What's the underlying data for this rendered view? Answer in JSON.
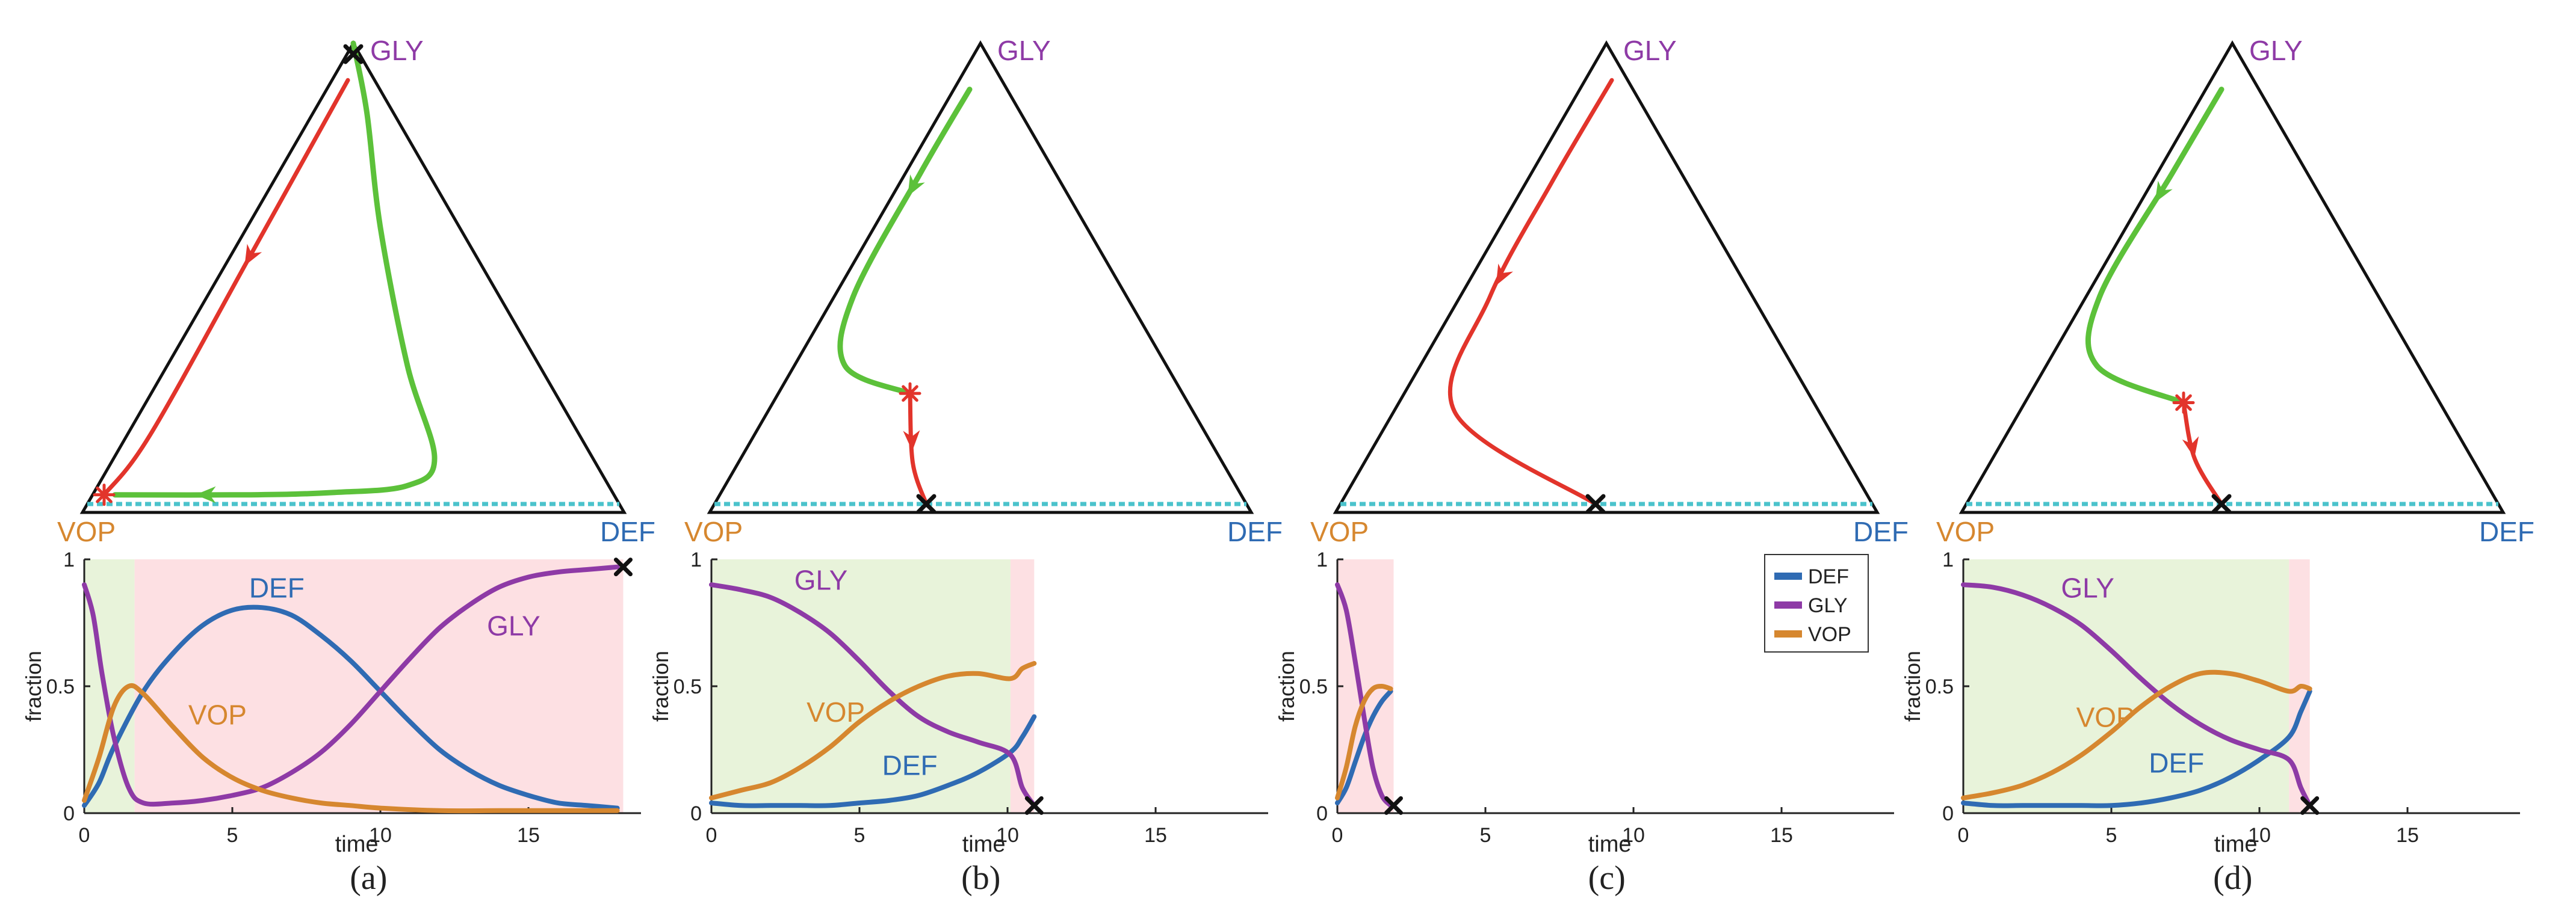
{
  "colors": {
    "DEF": "#2f6bb3",
    "GLY": "#8e3aa6",
    "VOP": "#d6872f",
    "path_green": "#5cc13a",
    "path_red": "#e2342b",
    "baseline": "#4cc3cc",
    "shade_green": "#e8f3da",
    "shade_red": "#fde0e3",
    "marker_star": "#e2342b",
    "end_x": "#111111"
  },
  "vertex_labels": {
    "top": "GLY",
    "left": "VOP",
    "right": "DEF"
  },
  "chart_data": [
    {
      "panel": "(a)",
      "type": "line",
      "xlabel": "time",
      "ylabel": "fraction",
      "xlim": [
        0,
        18.5
      ],
      "ylim": [
        0,
        1
      ],
      "xticks": [
        "0",
        "5",
        "10",
        "15"
      ],
      "yticks": [
        "0",
        "0.5",
        "1"
      ],
      "shading": [
        {
          "from": 0,
          "to": 1.7,
          "color": "green"
        },
        {
          "from": 1.7,
          "to": 18.2,
          "color": "red"
        }
      ],
      "series": [
        {
          "name": "DEF",
          "x": [
            0,
            0.5,
            1,
            2,
            3,
            4,
            5,
            6,
            7,
            8,
            9,
            10,
            11,
            12,
            13,
            14,
            15,
            16,
            17,
            18
          ],
          "values": [
            0.03,
            0.12,
            0.26,
            0.48,
            0.63,
            0.74,
            0.8,
            0.81,
            0.78,
            0.7,
            0.6,
            0.48,
            0.36,
            0.25,
            0.17,
            0.11,
            0.07,
            0.04,
            0.03,
            0.02
          ]
        },
        {
          "name": "GLY",
          "x": [
            0,
            0.3,
            0.6,
            1,
            1.5,
            2,
            3,
            4,
            5,
            6,
            7,
            8,
            9,
            10,
            11,
            12,
            13,
            14,
            15,
            16,
            17,
            18
          ],
          "values": [
            0.9,
            0.78,
            0.55,
            0.3,
            0.1,
            0.04,
            0.04,
            0.05,
            0.07,
            0.1,
            0.16,
            0.24,
            0.35,
            0.48,
            0.61,
            0.73,
            0.82,
            0.89,
            0.93,
            0.95,
            0.96,
            0.97
          ]
        },
        {
          "name": "VOP",
          "x": [
            0,
            0.5,
            1,
            1.5,
            2,
            3,
            4,
            5,
            6,
            7,
            8,
            9,
            10,
            12,
            14,
            16,
            18
          ],
          "values": [
            0.05,
            0.22,
            0.42,
            0.5,
            0.47,
            0.34,
            0.22,
            0.14,
            0.09,
            0.06,
            0.04,
            0.03,
            0.02,
            0.01,
            0.01,
            0.01,
            0.01
          ]
        }
      ],
      "curve_labels": [
        {
          "text": "DEF",
          "x": 6.5,
          "y": 0.85
        },
        {
          "text": "GLY",
          "x": 14.5,
          "y": 0.7
        },
        {
          "text": "VOP",
          "x": 4.5,
          "y": 0.35
        }
      ],
      "end_marker": {
        "x": 18.2,
        "y": 0.97
      }
    },
    {
      "panel": "(b)",
      "type": "line",
      "xlabel": "time",
      "ylabel": "fraction",
      "xlim": [
        0,
        19
      ],
      "ylim": [
        0,
        1
      ],
      "xticks": [
        "0",
        "5",
        "10",
        "15"
      ],
      "yticks": [
        "0",
        "0.5",
        "1"
      ],
      "shading": [
        {
          "from": 0,
          "to": 10.1,
          "color": "green"
        },
        {
          "from": 10.1,
          "to": 10.9,
          "color": "red"
        }
      ],
      "series": [
        {
          "name": "DEF",
          "x": [
            0,
            1,
            2,
            3,
            4,
            5,
            6,
            7,
            8,
            9,
            10.1,
            10.5,
            10.9
          ],
          "values": [
            0.04,
            0.03,
            0.03,
            0.03,
            0.03,
            0.04,
            0.05,
            0.07,
            0.11,
            0.16,
            0.24,
            0.3,
            0.38
          ]
        },
        {
          "name": "GLY",
          "x": [
            0,
            1,
            2,
            3,
            4,
            5,
            6,
            7,
            8,
            9,
            10.1,
            10.5,
            10.9
          ],
          "values": [
            0.9,
            0.88,
            0.85,
            0.79,
            0.71,
            0.6,
            0.48,
            0.38,
            0.32,
            0.28,
            0.23,
            0.1,
            0.03
          ]
        },
        {
          "name": "VOP",
          "x": [
            0,
            1,
            2,
            3,
            4,
            5,
            6,
            7,
            8,
            9,
            10.1,
            10.5,
            10.9
          ],
          "values": [
            0.06,
            0.09,
            0.12,
            0.18,
            0.26,
            0.36,
            0.44,
            0.5,
            0.54,
            0.55,
            0.53,
            0.57,
            0.59
          ]
        }
      ],
      "curve_labels": [
        {
          "text": "GLY",
          "x": 3.7,
          "y": 0.88
        },
        {
          "text": "VOP",
          "x": 4.2,
          "y": 0.36
        },
        {
          "text": "DEF",
          "x": 6.7,
          "y": 0.15
        }
      ],
      "end_marker": {
        "x": 10.9,
        "y": 0.03
      }
    },
    {
      "panel": "(c)",
      "type": "line",
      "xlabel": "time",
      "ylabel": "fraction",
      "xlim": [
        0,
        19
      ],
      "ylim": [
        0,
        1
      ],
      "xticks": [
        "0",
        "5",
        "10",
        "15"
      ],
      "yticks": [
        "0",
        "0.5",
        "1"
      ],
      "shading": [
        {
          "from": 0,
          "to": 1.9,
          "color": "red"
        }
      ],
      "series": [
        {
          "name": "DEF",
          "x": [
            0,
            0.3,
            0.6,
            0.9,
            1.2,
            1.5,
            1.8
          ],
          "values": [
            0.04,
            0.1,
            0.2,
            0.3,
            0.38,
            0.44,
            0.48
          ]
        },
        {
          "name": "GLY",
          "x": [
            0,
            0.3,
            0.6,
            0.9,
            1.2,
            1.5,
            1.8
          ],
          "values": [
            0.9,
            0.8,
            0.6,
            0.38,
            0.18,
            0.07,
            0.03
          ]
        },
        {
          "name": "VOP",
          "x": [
            0,
            0.3,
            0.6,
            0.9,
            1.2,
            1.5,
            1.8
          ],
          "values": [
            0.06,
            0.18,
            0.34,
            0.44,
            0.49,
            0.5,
            0.49
          ]
        }
      ],
      "legend": {
        "position": "top-right",
        "entries": [
          "DEF",
          "GLY",
          "VOP"
        ]
      },
      "end_marker": {
        "x": 1.9,
        "y": 0.03
      }
    },
    {
      "panel": "(d)",
      "type": "line",
      "xlabel": "time",
      "ylabel": "fraction",
      "xlim": [
        0,
        19
      ],
      "ylim": [
        0,
        1
      ],
      "xticks": [
        "0",
        "5",
        "10",
        "15"
      ],
      "yticks": [
        "0",
        "0.5",
        "1"
      ],
      "shading": [
        {
          "from": 0,
          "to": 11.0,
          "color": "green"
        },
        {
          "from": 11.0,
          "to": 11.7,
          "color": "red"
        }
      ],
      "series": [
        {
          "name": "DEF",
          "x": [
            0,
            1,
            2,
            3,
            4,
            5,
            6,
            7,
            8,
            9,
            10,
            11,
            11.4,
            11.7
          ],
          "values": [
            0.04,
            0.03,
            0.03,
            0.03,
            0.03,
            0.03,
            0.04,
            0.06,
            0.09,
            0.14,
            0.21,
            0.3,
            0.4,
            0.48
          ]
        },
        {
          "name": "GLY",
          "x": [
            0,
            1,
            2,
            3,
            4,
            5,
            6,
            7,
            8,
            9,
            10,
            11,
            11.4,
            11.7
          ],
          "values": [
            0.9,
            0.89,
            0.86,
            0.81,
            0.74,
            0.64,
            0.53,
            0.43,
            0.35,
            0.29,
            0.25,
            0.21,
            0.1,
            0.03
          ]
        },
        {
          "name": "VOP",
          "x": [
            0,
            1,
            2,
            3,
            4,
            5,
            6,
            7,
            8,
            9,
            10,
            11,
            11.4,
            11.7
          ],
          "values": [
            0.06,
            0.08,
            0.11,
            0.16,
            0.23,
            0.32,
            0.42,
            0.5,
            0.55,
            0.55,
            0.52,
            0.48,
            0.5,
            0.49
          ]
        }
      ],
      "curve_labels": [
        {
          "text": "GLY",
          "x": 4.2,
          "y": 0.85
        },
        {
          "text": "VOP",
          "x": 4.8,
          "y": 0.34
        },
        {
          "text": "DEF",
          "x": 7.2,
          "y": 0.16
        }
      ],
      "end_marker": {
        "x": 11.7,
        "y": 0.03
      }
    }
  ],
  "simplex_paths": [
    {
      "panel": "(a)",
      "green": [
        [
          0.0,
          1.0,
          0.0
        ],
        [
          0.1,
          0.85,
          0.05
        ],
        [
          0.25,
          0.6,
          0.15
        ],
        [
          0.45,
          0.3,
          0.25
        ],
        [
          0.6,
          0.1,
          0.3
        ],
        [
          0.58,
          0.04,
          0.38
        ],
        [
          0.45,
          0.025,
          0.525
        ],
        [
          0.3,
          0.02,
          0.68
        ],
        [
          0.05,
          0.02,
          0.93
        ]
      ],
      "red": [
        [
          0.03,
          0.92,
          0.05
        ],
        [
          0.04,
          0.55,
          0.41
        ],
        [
          0.05,
          0.15,
          0.8
        ],
        [
          0.03,
          0.02,
          0.95
        ]
      ],
      "star": [
        0.03,
        0.02,
        0.95
      ],
      "end": [
        0.0,
        1.0,
        0.0
      ]
    },
    {
      "panel": "(b)",
      "green": [
        [
          0.03,
          0.9,
          0.07
        ],
        [
          0.03,
          0.72,
          0.25
        ],
        [
          0.04,
          0.45,
          0.51
        ],
        [
          0.1,
          0.3,
          0.6
        ],
        [
          0.25,
          0.24,
          0.51
        ]
      ],
      "red": [
        [
          0.25,
          0.24,
          0.51
        ],
        [
          0.33,
          0.09,
          0.58
        ],
        [
          0.4,
          0.0,
          0.6
        ]
      ],
      "star": [
        0.25,
        0.24,
        0.51
      ],
      "end": [
        0.4,
        0.0,
        0.6
      ]
    },
    {
      "panel": "(c)",
      "green": [],
      "red": [
        [
          0.05,
          0.92,
          0.03
        ],
        [
          0.05,
          0.7,
          0.25
        ],
        [
          0.06,
          0.45,
          0.49
        ],
        [
          0.12,
          0.2,
          0.68
        ],
        [
          0.48,
          0.0,
          0.52
        ]
      ],
      "star": null,
      "end": [
        0.48,
        0.0,
        0.52
      ]
    },
    {
      "panel": "(d)",
      "green": [
        [
          0.03,
          0.9,
          0.07
        ],
        [
          0.03,
          0.72,
          0.25
        ],
        [
          0.03,
          0.45,
          0.52
        ],
        [
          0.1,
          0.3,
          0.6
        ],
        [
          0.3,
          0.22,
          0.48
        ]
      ],
      "red": [
        [
          0.3,
          0.22,
          0.48
        ],
        [
          0.38,
          0.1,
          0.52
        ],
        [
          0.48,
          0.0,
          0.52
        ]
      ],
      "star": [
        0.3,
        0.22,
        0.48
      ],
      "end": [
        0.48,
        0.0,
        0.52
      ]
    }
  ]
}
